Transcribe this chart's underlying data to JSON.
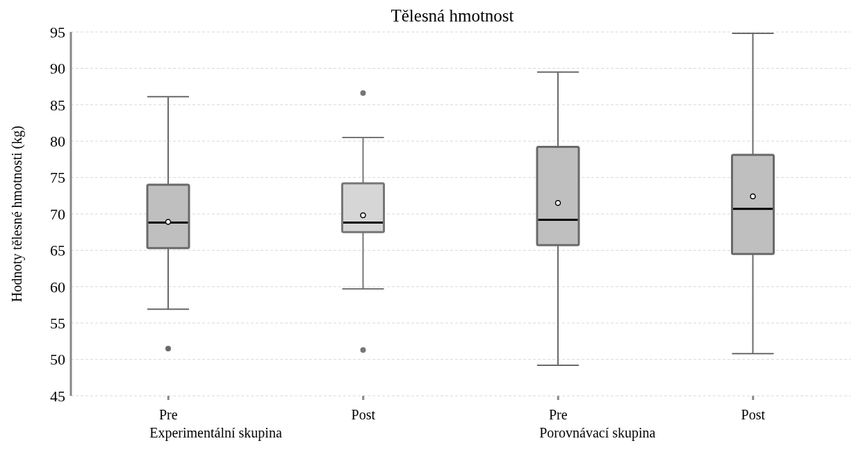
{
  "chart_data": {
    "type": "box",
    "title": "Tělesná hmotnost",
    "ylabel": "Hodnoty tělesné hmotnosti (kg)",
    "categories": [
      "Pre",
      "Post",
      "Pre",
      "Post"
    ],
    "annotations": [
      "Experimentální skupina",
      "Porovnávací skupina"
    ],
    "colors": [
      "#bfbfbf",
      "#d6d6d6",
      "#bfbfbf",
      "#bfbfbf"
    ],
    "boxes": [
      {
        "low": 56.9,
        "q1": 65.3,
        "median": 68.8,
        "q3": 74.0,
        "high": 86.1,
        "mean": 68.9,
        "outliers": [
          51.5
        ]
      },
      {
        "low": 59.7,
        "q1": 67.5,
        "median": 68.8,
        "q3": 74.2,
        "high": 80.5,
        "mean": 69.8,
        "outliers": [
          86.6,
          51.3
        ]
      },
      {
        "low": 49.2,
        "q1": 65.7,
        "median": 69.2,
        "q3": 79.2,
        "high": 89.5,
        "mean": 71.5
      },
      {
        "low": 50.8,
        "q1": 64.5,
        "median": 70.7,
        "q3": 78.1,
        "high": 94.8,
        "mean": 72.4
      }
    ],
    "ylim": [
      45,
      95
    ],
    "yticks": [
      45,
      50,
      55,
      60,
      65,
      70,
      75,
      80,
      85,
      90,
      95
    ],
    "grid": "y"
  }
}
